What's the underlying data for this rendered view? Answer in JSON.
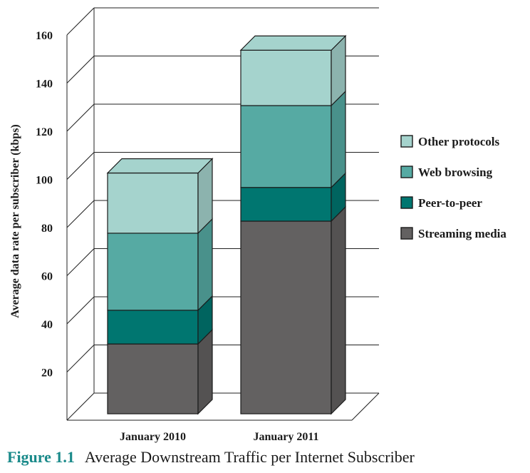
{
  "chart_data": {
    "type": "bar",
    "stacked": true,
    "three_d": true,
    "categories": [
      "January 2010",
      "January 2011"
    ],
    "series": [
      {
        "name": "Streaming media",
        "values": [
          29,
          80
        ],
        "color": "#636161"
      },
      {
        "name": "Peer-to-peer",
        "values": [
          14,
          14
        ],
        "color": "#007670"
      },
      {
        "name": "Web browsing",
        "values": [
          32,
          34
        ],
        "color": "#56aaa3"
      },
      {
        "name": "Other protocols",
        "values": [
          25,
          23
        ],
        "color": "#a5d3cd"
      }
    ],
    "legend_order": [
      "Other protocols",
      "Web browsing",
      "Peer-to-peer",
      "Streaming media"
    ],
    "ylabel": "Average data rate per subscriber (kbps)",
    "xlabel": "",
    "ylim": [
      0,
      160
    ],
    "yticks": [
      20,
      40,
      60,
      80,
      100,
      120,
      140,
      160
    ],
    "grid": true,
    "legend_position": "right"
  },
  "caption": {
    "label": "Figure 1.1",
    "text": "Average Downstream Traffic per Internet Subscriber"
  }
}
